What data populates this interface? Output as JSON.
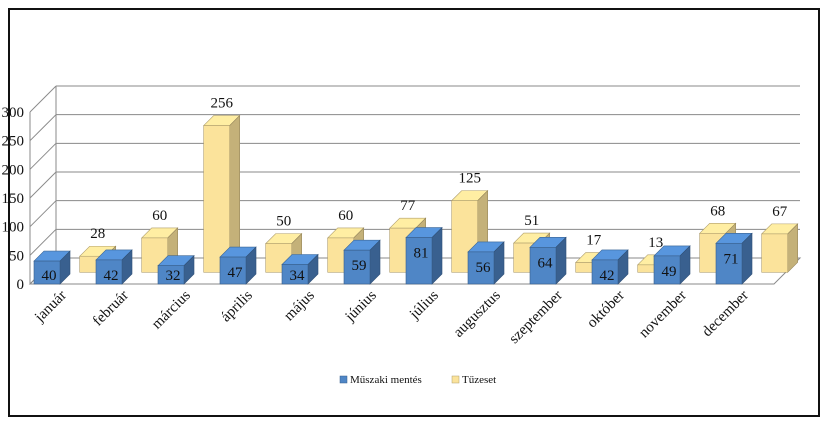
{
  "chart_data": {
    "type": "bar",
    "title": "",
    "xlabel": "",
    "ylabel": "",
    "ylim": [
      0,
      300
    ],
    "yticks": [
      0,
      50,
      100,
      150,
      200,
      250,
      300
    ],
    "categories": [
      "január",
      "február",
      "március",
      "április",
      "május",
      "június",
      "július",
      "augusztus",
      "szeptember",
      "október",
      "november",
      "december"
    ],
    "series": [
      {
        "name": "Műszaki mentés",
        "values": [
          40,
          42,
          32,
          47,
          34,
          59,
          81,
          56,
          64,
          42,
          49,
          71
        ]
      },
      {
        "name": "Tűzeset",
        "values": [
          28,
          60,
          256,
          50,
          60,
          77,
          125,
          51,
          17,
          13,
          68,
          67
        ]
      }
    ],
    "style": "3d-clustered-column",
    "grid": true,
    "legend_position": "bottom",
    "colors": {
      "Műszaki mentés": "#4f86c6",
      "Tűzeset": "#fbe39b"
    }
  }
}
